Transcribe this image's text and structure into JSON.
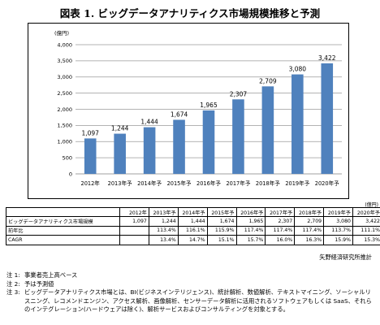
{
  "title": "図表 1. ビッグデータアナリティクス市場規模推移と予測",
  "chart_data": {
    "type": "bar",
    "unit": "(億円)",
    "categories": [
      "2012年",
      "2013年予",
      "2014年予",
      "2015年予",
      "2016年予",
      "2017年予",
      "2018年予",
      "2019年予",
      "2020年予"
    ],
    "values": [
      1097,
      1244,
      1444,
      1674,
      1965,
      2307,
      2709,
      3080,
      3422
    ],
    "value_labels": [
      "1,097",
      "1,244",
      "1,444",
      "1,674",
      "1,965",
      "2,307",
      "2,709",
      "3,080",
      "3,422"
    ],
    "ylim": [
      0,
      4000
    ],
    "yticks": [
      0,
      500,
      1000,
      1500,
      2000,
      2500,
      3000,
      3500,
      4000
    ],
    "ytick_labels": [
      "0",
      "500",
      "1,000",
      "1,500",
      "2,000",
      "2,500",
      "3,000",
      "3,500",
      "4,000"
    ],
    "grid": true,
    "bar_color": "#4F81BD"
  },
  "table": {
    "unit": "(億円)",
    "headers": [
      "",
      "2012年",
      "2013年予",
      "2014年予",
      "2015年予",
      "2016年予",
      "2017年予",
      "2018年予",
      "2019年予",
      "2020年予"
    ],
    "rows": [
      [
        "ビッグデータアナリティクス市場規模",
        "1,097",
        "1,244",
        "1,444",
        "1,674",
        "1,965",
        "2,307",
        "2,709",
        "3,080",
        "3,422"
      ],
      [
        "前年比",
        "",
        "113.4%",
        "116.1%",
        "115.9%",
        "117.4%",
        "117.4%",
        "117.4%",
        "113.7%",
        "111.1%"
      ],
      [
        "CAGR",
        "",
        "13.4%",
        "14.7%",
        "15.1%",
        "15.7%",
        "16.0%",
        "16.3%",
        "15.9%",
        "15.3%"
      ]
    ]
  },
  "source": "矢野経済研究所推計",
  "notes": [
    {
      "label": "注 1:",
      "text": "事業者売上高ベース"
    },
    {
      "label": "注 2:",
      "text": "予は予測値"
    },
    {
      "label": "注 3:",
      "text": "ビッグデータアナリティクス市場とは、BI(ビジネスインテリジェンス)、統計解析、数値解析、テキストマイニング、ソーシャルリスニング、レコメンドエンジン、アクセス解析、画像解析、センサーデータ解析に活用されるソフトウェアもしくは SaaS、それらのインテグレーション(ハードウェアは除く)、解析サービスおよびコンサルティングを対象とする。"
    }
  ]
}
